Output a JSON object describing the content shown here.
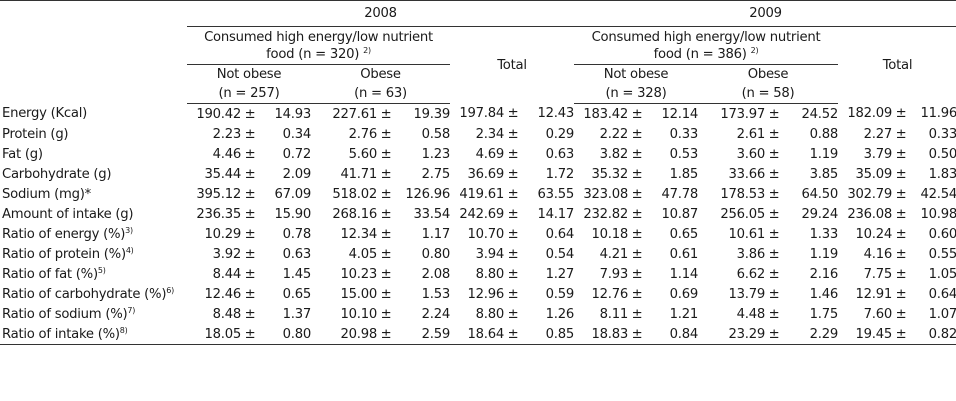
{
  "header": {
    "year_2008": "2008",
    "year_2009": "2009",
    "group_2008_line1": "Consumed high energy/low nutrient",
    "group_2008_line2": "food (n = 320)",
    "group_2008_sup": "2)",
    "group_2009_line1": "Consumed high energy/low nutrient",
    "group_2009_line2": "food (n = 386)",
    "group_2009_sup": "2)",
    "total_label": "Total",
    "not_obese_label": "Not obese",
    "obese_label": "Obese",
    "n_2008_not_obese": "(n = 257)",
    "n_2008_obese": "(n = 63)",
    "n_2009_not_obese": "(n = 328)",
    "n_2009_obese": "(n = 58)"
  },
  "pm_symbol": "±",
  "rows": [
    {
      "label": "Energy (Kcal)",
      "sup": "",
      "values": [
        [
          "190.42",
          "14.93"
        ],
        [
          "227.61",
          "19.39"
        ],
        [
          "197.84",
          "12.43"
        ],
        [
          "183.42",
          "12.14"
        ],
        [
          "173.97",
          "24.52"
        ],
        [
          "182.09",
          "11.96"
        ]
      ]
    },
    {
      "label": "Protein (g)",
      "sup": "",
      "values": [
        [
          "2.23",
          "0.34"
        ],
        [
          "2.76",
          "0.58"
        ],
        [
          "2.34",
          "0.29"
        ],
        [
          "2.22",
          "0.33"
        ],
        [
          "2.61",
          "0.88"
        ],
        [
          "2.27",
          "0.33"
        ]
      ]
    },
    {
      "label": "Fat (g)",
      "sup": "",
      "values": [
        [
          "4.46",
          "0.72"
        ],
        [
          "5.60",
          "1.23"
        ],
        [
          "4.69",
          "0.63"
        ],
        [
          "3.82",
          "0.53"
        ],
        [
          "3.60",
          "1.19"
        ],
        [
          "3.79",
          "0.50"
        ]
      ]
    },
    {
      "label": "Carbohydrate (g)",
      "sup": "",
      "values": [
        [
          "35.44",
          "2.09"
        ],
        [
          "41.71",
          "2.75"
        ],
        [
          "36.69",
          "1.72"
        ],
        [
          "35.32",
          "1.85"
        ],
        [
          "33.66",
          "3.85"
        ],
        [
          "35.09",
          "1.83"
        ]
      ]
    },
    {
      "label": "Sodium (mg)*",
      "sup": "",
      "values": [
        [
          "395.12",
          "67.09"
        ],
        [
          "518.02",
          "126.96"
        ],
        [
          "419.61",
          "63.55"
        ],
        [
          "323.08",
          "47.78"
        ],
        [
          "178.53",
          "64.50"
        ],
        [
          "302.79",
          "42.54"
        ]
      ]
    },
    {
      "label": "Amount of intake (g)",
      "sup": "",
      "values": [
        [
          "236.35",
          "15.90"
        ],
        [
          "268.16",
          "33.54"
        ],
        [
          "242.69",
          "14.17"
        ],
        [
          "232.82",
          "10.87"
        ],
        [
          "256.05",
          "29.24"
        ],
        [
          "236.08",
          "10.98"
        ]
      ]
    },
    {
      "label": "Ratio of energy (%)",
      "sup": "3)",
      "values": [
        [
          "10.29",
          "0.78"
        ],
        [
          "12.34",
          "1.17"
        ],
        [
          "10.70",
          "0.64"
        ],
        [
          "10.18",
          "0.65"
        ],
        [
          "10.61",
          "1.33"
        ],
        [
          "10.24",
          "0.60"
        ]
      ]
    },
    {
      "label": "Ratio of protein (%)",
      "sup": "4)",
      "values": [
        [
          "3.92",
          "0.63"
        ],
        [
          "4.05",
          "0.80"
        ],
        [
          "3.94",
          "0.54"
        ],
        [
          "4.21",
          "0.61"
        ],
        [
          "3.86",
          "1.19"
        ],
        [
          "4.16",
          "0.55"
        ]
      ]
    },
    {
      "label": "Ratio of fat (%)",
      "sup": "5)",
      "values": [
        [
          "8.44",
          "1.45"
        ],
        [
          "10.23",
          "2.08"
        ],
        [
          "8.80",
          "1.27"
        ],
        [
          "7.93",
          "1.14"
        ],
        [
          "6.62",
          "2.16"
        ],
        [
          "7.75",
          "1.05"
        ]
      ]
    },
    {
      "label": "Ratio of carbohydrate (%)",
      "sup": "6)",
      "values": [
        [
          "12.46",
          "0.65"
        ],
        [
          "15.00",
          "1.53"
        ],
        [
          "12.96",
          "0.59"
        ],
        [
          "12.76",
          "0.69"
        ],
        [
          "13.79",
          "1.46"
        ],
        [
          "12.91",
          "0.64"
        ]
      ]
    },
    {
      "label": "Ratio of sodium (%)",
      "sup": "7)",
      "values": [
        [
          "8.48",
          "1.37"
        ],
        [
          "10.10",
          "2.24"
        ],
        [
          "8.80",
          "1.26"
        ],
        [
          "8.11",
          "1.21"
        ],
        [
          "4.48",
          "1.75"
        ],
        [
          "7.60",
          "1.07"
        ]
      ]
    },
    {
      "label": "Ratio of intake (%)",
      "sup": "8)",
      "values": [
        [
          "18.05",
          "0.80"
        ],
        [
          "20.98",
          "2.59"
        ],
        [
          "18.64",
          "0.85"
        ],
        [
          "18.83",
          "0.84"
        ],
        [
          "23.29",
          "2.29"
        ],
        [
          "19.45",
          "0.82"
        ]
      ]
    }
  ]
}
